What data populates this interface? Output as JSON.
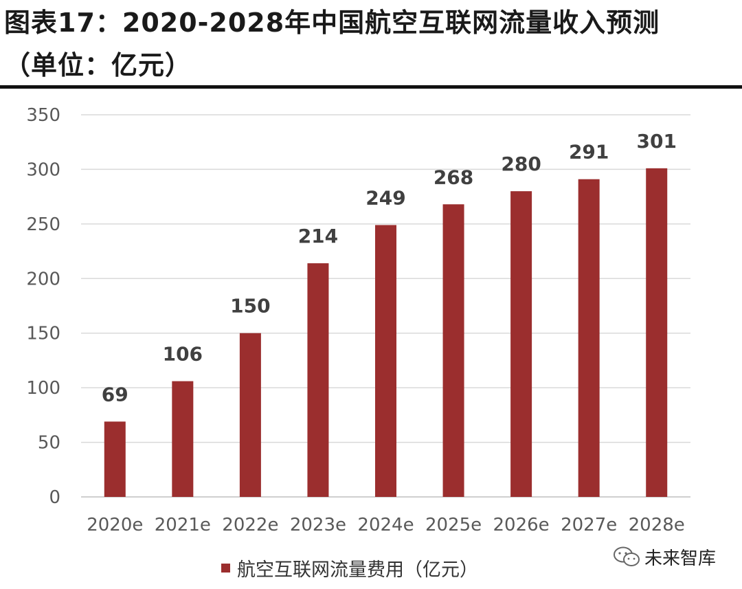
{
  "header": {
    "title_line1": "图表17：2020-2028年中国航空互联网流量收入预测",
    "title_line2": "（单位：亿元）"
  },
  "colors": {
    "bar": "#9b2e2e",
    "grid": "#d9d9d9",
    "axis_text": "#595959",
    "label_text": "#404040"
  },
  "chart_data": {
    "type": "bar",
    "title": "图表17：2020-2028年中国航空互联网流量收入预测（单位：亿元）",
    "categories": [
      "2020e",
      "2021e",
      "2022e",
      "2023e",
      "2024e",
      "2025e",
      "2026e",
      "2027e",
      "2028e"
    ],
    "series": [
      {
        "name": "航空互联网流量费用（亿元）",
        "values": [
          69,
          106,
          150,
          214,
          249,
          268,
          280,
          291,
          301
        ]
      }
    ],
    "data_labels": [
      "69",
      "106",
      "150",
      "214",
      "249",
      "268",
      "280",
      "291",
      "301"
    ],
    "ylim": [
      0,
      350
    ],
    "yticks": [
      "0",
      "50",
      "100",
      "150",
      "200",
      "250",
      "300",
      "350"
    ],
    "grid": true,
    "legend": "bottom"
  },
  "legend": {
    "label": "航空互联网流量费用（亿元）"
  },
  "watermark": {
    "text": "未来智库",
    "icon": "wechat-icon"
  }
}
